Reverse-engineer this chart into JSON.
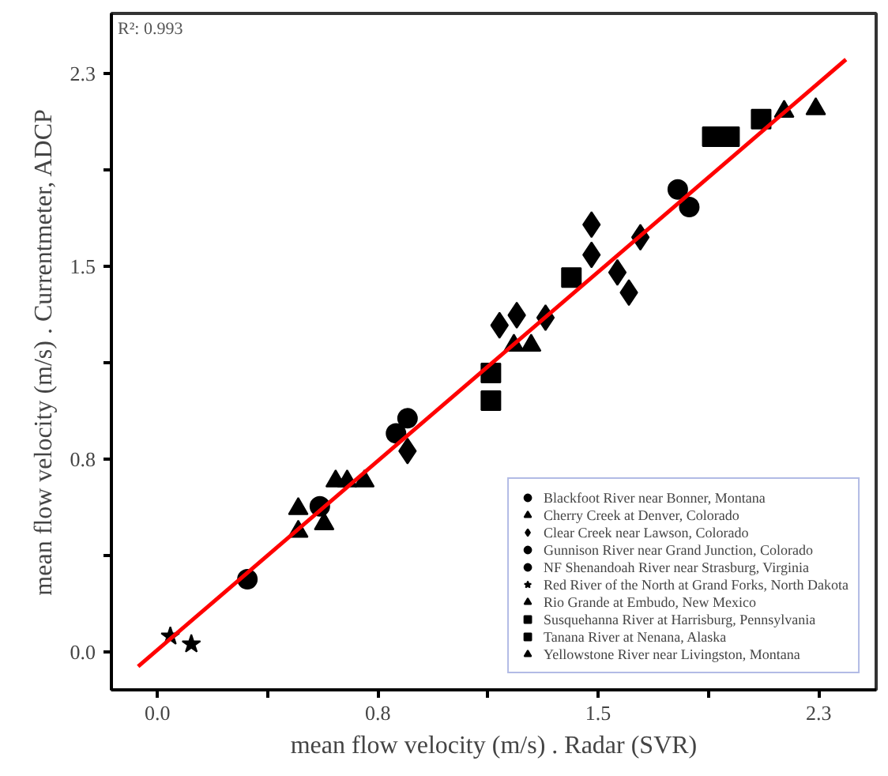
{
  "chart_data": {
    "type": "scatter",
    "xlabel": "mean flow velocity (m/s) . Radar (SVR)",
    "ylabel": "mean flow velocity (m/s) . Currentmeter, ADCP",
    "annotations": [
      "R²: 0.993"
    ],
    "xlim": [
      -0.16,
      2.5
    ],
    "ylim": [
      -0.15,
      2.54
    ],
    "xticks": [
      {
        "value": 0,
        "label": "0.0"
      },
      {
        "value": 0.383,
        "label": null
      },
      {
        "value": 0.767,
        "label": "0.8"
      },
      {
        "value": 1.15,
        "label": null
      },
      {
        "value": 1.533,
        "label": "1.5"
      },
      {
        "value": 1.917,
        "label": null
      },
      {
        "value": 2.3,
        "label": "2.3"
      }
    ],
    "yticks": [
      {
        "value": 0,
        "label": "0.0"
      },
      {
        "value": 0.383,
        "label": null
      },
      {
        "value": 0.767,
        "label": "0.8"
      },
      {
        "value": 1.15,
        "label": null
      },
      {
        "value": 1.533,
        "label": "1.5"
      },
      {
        "value": 1.917,
        "label": null
      },
      {
        "value": 2.3,
        "label": "2.3"
      }
    ],
    "grid": false,
    "legend": "bottom right",
    "series": [
      {
        "name": "Blackfoot River near Bonner, Montana",
        "color": "#000000",
        "marker": "circle",
        "x": [
          1.81,
          1.85
        ],
        "values": [
          1.84,
          1.77
        ]
      },
      {
        "name": "Cherry Creek at Denver, Colorado",
        "color": "#000000",
        "marker": "triangle",
        "x": [
          0.72,
          2.29
        ],
        "values": [
          0.68,
          2.16
        ]
      },
      {
        "name": "Clear Creek near Lawson, Colorado",
        "color": "#000000",
        "marker": "diamond",
        "x": [
          0.87,
          1.19,
          1.25,
          1.35,
          1.51,
          1.51,
          1.6,
          1.64,
          1.68
        ],
        "values": [
          0.8,
          1.3,
          1.34,
          1.33,
          1.7,
          1.58,
          1.51,
          1.43,
          1.65
        ]
      },
      {
        "name": "Gunnison River near Grand Junction, Colorado",
        "color": "#000000",
        "marker": "circle",
        "x": [
          0.565,
          0.83,
          0.87
        ],
        "values": [
          0.58,
          0.87,
          0.93
        ]
      },
      {
        "name": "NF Shenandoah River near Strasburg, Virginia",
        "color": "#000000",
        "marker": "circle",
        "x": [
          0.313
        ],
        "values": [
          0.29
        ]
      },
      {
        "name": "Red River of the North at Grand Forks, North Dakota",
        "color": "#000000",
        "marker": "star",
        "x": [
          0.045,
          0.118
        ],
        "values": [
          0.063,
          0.032
        ]
      },
      {
        "name": "Rio Grande at Embudo, New Mexico",
        "color": "#000000",
        "marker": "triangle",
        "x": [
          0.49,
          0.49,
          0.58,
          1.24,
          1.3
        ],
        "values": [
          0.57,
          0.48,
          0.51,
          1.22,
          1.22
        ]
      },
      {
        "name": "Susquehanna River at Harrisburg, Pennsylvania",
        "color": "#000000",
        "marker": "square",
        "x": [
          1.93,
          1.99
        ],
        "values": [
          2.05,
          2.05
        ]
      },
      {
        "name": "Tanana River at Nenana, Alaska",
        "color": "#000000",
        "marker": "square",
        "x": [
          1.16,
          1.16,
          1.44,
          2.1
        ],
        "values": [
          1.11,
          1.0,
          1.49,
          2.12
        ]
      },
      {
        "name": "Yellowstone River near Livingston, Montana",
        "color": "#000000",
        "marker": "triangle",
        "x": [
          0.62,
          0.66,
          2.18
        ],
        "values": [
          0.68,
          0.68,
          2.15
        ]
      },
      {
        "type": "line",
        "color": "#ff0000",
        "x": [
          -0.067,
          2.395
        ],
        "values": [
          -0.057,
          2.357
        ]
      }
    ]
  }
}
